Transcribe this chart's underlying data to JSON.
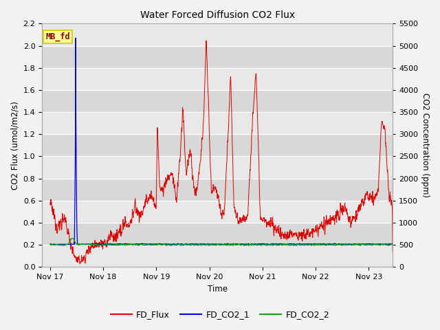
{
  "title": "Water Forced Diffusion CO2 Flux",
  "xlabel": "Time",
  "ylabel_left": "CO2 Flux (umol/m2/s)",
  "ylabel_right": "CO2 Concentration (ppm)",
  "ylim_left": [
    0.0,
    2.2
  ],
  "ylim_right": [
    0,
    5500
  ],
  "yticks_left": [
    0.0,
    0.2,
    0.4,
    0.6,
    0.8,
    1.0,
    1.2,
    1.4,
    1.6,
    1.8,
    2.0,
    2.2
  ],
  "yticks_right": [
    0,
    500,
    1000,
    1500,
    2000,
    2500,
    3000,
    3500,
    4000,
    4500,
    5000,
    5500
  ],
  "xtick_labels": [
    "Nov 17",
    "Nov 18",
    "Nov 19",
    "Nov 20",
    "Nov 21",
    "Nov 22",
    "Nov 23"
  ],
  "xtick_positions": [
    0,
    1,
    2,
    3,
    4,
    5,
    6
  ],
  "annotation_text": "MB_fd",
  "annotation_bg": "#ffff99",
  "annotation_border": "#cccc00",
  "annotation_text_color": "#880000",
  "flux_color": "#dd0000",
  "co2_1_color": "#0000dd",
  "co2_2_color": "#00aa00",
  "fig_bg": "#f2f2f2",
  "plot_bg_light": "#e8e8e8",
  "plot_bg_dark": "#d8d8d8",
  "grid_color": "#ffffff",
  "fig_width": 6.4,
  "fig_height": 4.8,
  "dpi": 100,
  "xlim": [
    -0.15,
    6.45
  ]
}
